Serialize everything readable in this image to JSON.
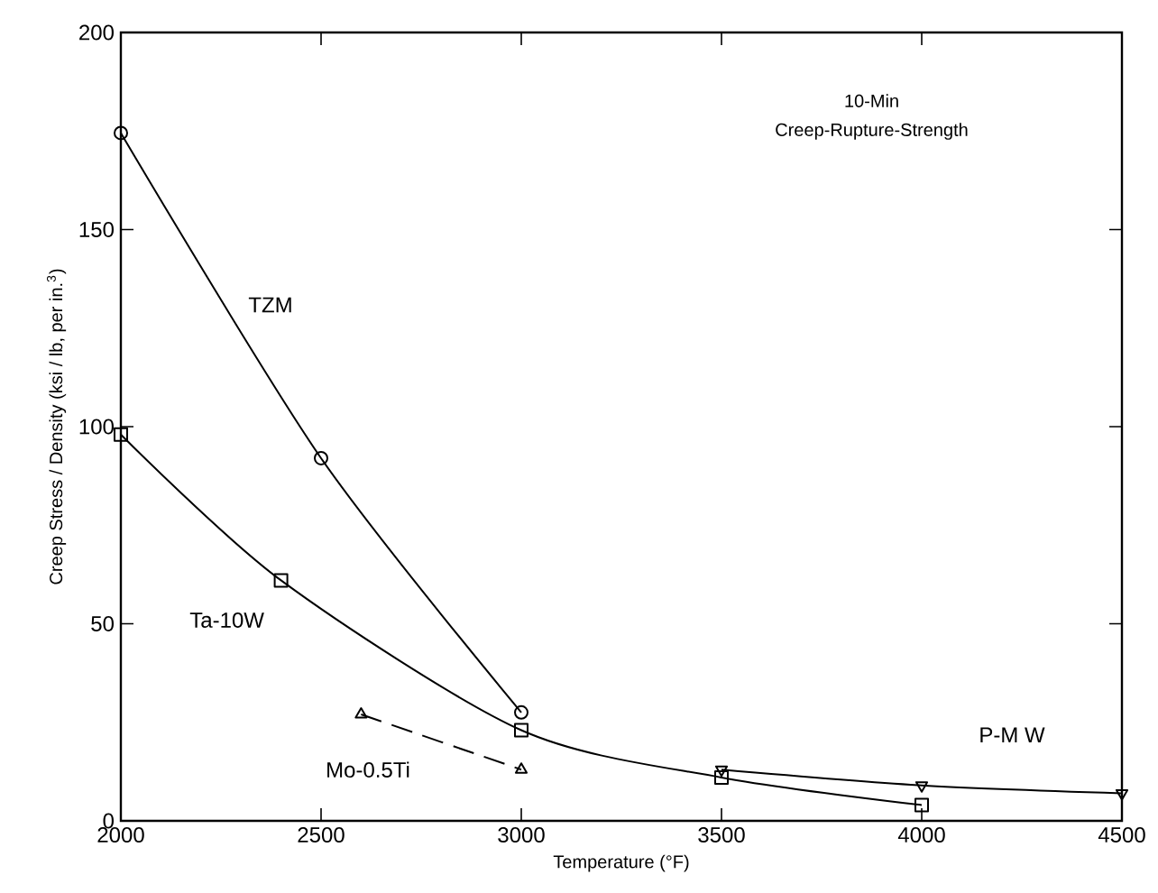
{
  "chart_data": {
    "type": "line",
    "xlabel": "Temperature (°F)",
    "ylabel": "Creep Stress / Density (ksi / lb, per in.$^{3}$)",
    "annotations": [
      "10-Min",
      "Creep-Rupture-Strength"
    ],
    "xlim": [
      2000,
      4500
    ],
    "xticks": [
      2000,
      2500,
      3000,
      3500,
      4000,
      4500
    ],
    "ylim": [
      0,
      200
    ],
    "yticks": [
      0,
      50,
      100,
      150,
      200
    ],
    "grid": false,
    "legend": false,
    "series": [
      {
        "name": "TZM",
        "color": "#000000",
        "marker": "circle",
        "line_style": "solid",
        "x": [
          2000,
          2500,
          3000
        ],
        "values": [
          174.5,
          92,
          27.5
        ]
      },
      {
        "name": "Ta-10W",
        "color": "#000000",
        "marker": "square",
        "line_style": "solid",
        "x": [
          2000,
          2400,
          3000,
          3500,
          4000
        ],
        "values": [
          98,
          61,
          23,
          11,
          4
        ]
      },
      {
        "name": "Mo-0.5Ti",
        "color": "#000000",
        "marker": "triangle",
        "line_style": "dashed",
        "x": [
          2600,
          3000
        ],
        "values": [
          27,
          13
        ]
      },
      {
        "name": "P-M W",
        "color": "#000000",
        "marker": "triangle down",
        "line_style": "solid",
        "x": [
          3500,
          4000,
          4500
        ],
        "values": [
          13,
          9,
          7
        ]
      }
    ]
  }
}
